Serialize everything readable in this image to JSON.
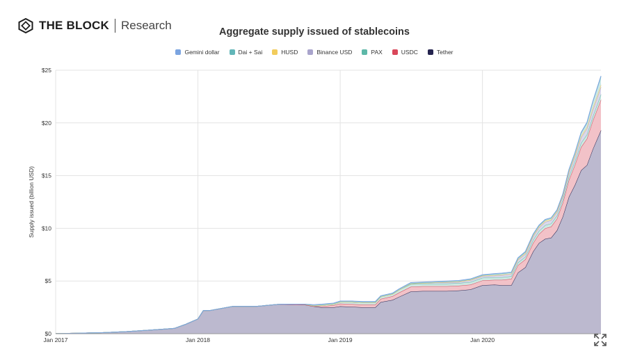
{
  "brand": {
    "name": "THE BLOCK",
    "sub": "Research"
  },
  "chart_data": {
    "type": "area",
    "stacked": true,
    "title": "Aggregate supply issued of stablecoins",
    "ylabel": "Supply issued (billion USD)",
    "xlabel": "",
    "ylim": [
      0,
      25
    ],
    "xlim": [
      "2017-01-01",
      "2020-10-31"
    ],
    "y_ticks": [
      0,
      5,
      10,
      15,
      20,
      25
    ],
    "y_tick_labels": [
      "$0",
      "$5",
      "$10",
      "$15",
      "$20",
      "$25"
    ],
    "x_ticks": [
      "2017-01-01",
      "2018-01-01",
      "2019-01-01",
      "2020-01-01"
    ],
    "x_tick_labels": [
      "Jan 2017",
      "Jan 2018",
      "Jan 2019",
      "Jan 2020"
    ],
    "grid": true,
    "legend_position": "top-center",
    "x": [
      "2017-01-01",
      "2017-03-01",
      "2017-05-01",
      "2017-07-01",
      "2017-09-01",
      "2017-11-01",
      "2017-12-01",
      "2018-01-01",
      "2018-01-15",
      "2018-02-01",
      "2018-04-01",
      "2018-06-01",
      "2018-08-01",
      "2018-10-01",
      "2018-10-25",
      "2018-11-15",
      "2018-12-15",
      "2019-01-01",
      "2019-02-01",
      "2019-03-01",
      "2019-04-01",
      "2019-04-15",
      "2019-05-15",
      "2019-06-01",
      "2019-07-01",
      "2019-08-01",
      "2019-09-01",
      "2019-10-01",
      "2019-11-01",
      "2019-12-01",
      "2020-01-01",
      "2020-02-01",
      "2020-02-20",
      "2020-03-15",
      "2020-04-01",
      "2020-04-20",
      "2020-05-10",
      "2020-05-25",
      "2020-06-10",
      "2020-06-25",
      "2020-07-10",
      "2020-07-25",
      "2020-08-10",
      "2020-08-25",
      "2020-09-10",
      "2020-09-25",
      "2020-10-10",
      "2020-10-31"
    ],
    "series": [
      {
        "name": "Tether",
        "color": "#25244f",
        "fill": "#bcb9cf",
        "values": [
          0.01,
          0.05,
          0.1,
          0.2,
          0.35,
          0.5,
          0.9,
          1.4,
          2.2,
          2.2,
          2.6,
          2.6,
          2.8,
          2.75,
          2.6,
          2.5,
          2.5,
          2.6,
          2.55,
          2.5,
          2.5,
          3.0,
          3.2,
          3.5,
          4.0,
          4.05,
          4.05,
          4.05,
          4.1,
          4.2,
          4.6,
          4.65,
          4.6,
          4.6,
          5.8,
          6.3,
          7.8,
          8.6,
          9.0,
          9.1,
          9.8,
          11.1,
          13.0,
          14.1,
          15.5,
          16.0,
          17.5,
          19.3
        ]
      },
      {
        "name": "USDC",
        "color": "#d9475a",
        "fill": "#f2c2c8",
        "values": [
          0,
          0,
          0,
          0,
          0,
          0,
          0,
          0,
          0,
          0,
          0,
          0,
          0,
          0,
          0,
          0.1,
          0.2,
          0.25,
          0.25,
          0.25,
          0.25,
          0.3,
          0.35,
          0.4,
          0.45,
          0.45,
          0.45,
          0.45,
          0.45,
          0.45,
          0.45,
          0.45,
          0.5,
          0.6,
          0.7,
          0.75,
          0.8,
          0.85,
          1.0,
          1.05,
          1.1,
          1.3,
          1.6,
          1.9,
          2.2,
          2.5,
          2.7,
          2.9
        ]
      },
      {
        "name": "PAX",
        "color": "#5db8a8",
        "fill": "#cde8e2",
        "values": [
          0,
          0,
          0,
          0,
          0,
          0,
          0,
          0,
          0,
          0,
          0,
          0,
          0,
          0.05,
          0.05,
          0.1,
          0.1,
          0.15,
          0.2,
          0.2,
          0.2,
          0.2,
          0.2,
          0.25,
          0.25,
          0.25,
          0.25,
          0.25,
          0.25,
          0.25,
          0.25,
          0.25,
          0.25,
          0.25,
          0.25,
          0.25,
          0.3,
          0.3,
          0.3,
          0.3,
          0.3,
          0.3,
          0.35,
          0.35,
          0.4,
          0.4,
          0.4,
          0.5
        ]
      },
      {
        "name": "Binance USD",
        "color": "#a9a4cc",
        "fill": "#dcd9ec",
        "values": [
          0,
          0,
          0,
          0,
          0,
          0,
          0,
          0,
          0,
          0,
          0,
          0,
          0,
          0,
          0,
          0,
          0,
          0,
          0,
          0,
          0,
          0,
          0,
          0,
          0.05,
          0.05,
          0.1,
          0.1,
          0.1,
          0.15,
          0.15,
          0.15,
          0.2,
          0.2,
          0.25,
          0.25,
          0.3,
          0.3,
          0.3,
          0.3,
          0.3,
          0.3,
          0.35,
          0.4,
          0.5,
          0.55,
          0.6,
          0.7
        ]
      },
      {
        "name": "HUSD",
        "color": "#f2cc5c",
        "fill": "#f7ecc4",
        "values": [
          0,
          0,
          0,
          0,
          0,
          0,
          0,
          0,
          0,
          0,
          0,
          0,
          0,
          0,
          0,
          0,
          0,
          0,
          0,
          0,
          0,
          0,
          0,
          0,
          0,
          0,
          0,
          0.05,
          0.05,
          0.05,
          0.05,
          0.05,
          0.05,
          0.05,
          0.05,
          0.1,
          0.1,
          0.1,
          0.1,
          0.1,
          0.1,
          0.1,
          0.1,
          0.15,
          0.15,
          0.15,
          0.2,
          0.2
        ]
      },
      {
        "name": "Dai + Sai",
        "color": "#62b6b8",
        "fill": "#cbe7e8",
        "values": [
          0,
          0,
          0,
          0,
          0,
          0,
          0,
          0,
          0,
          0,
          0,
          0,
          0,
          0,
          0.05,
          0.05,
          0.05,
          0.05,
          0.05,
          0.05,
          0.05,
          0.05,
          0.05,
          0.05,
          0.05,
          0.05,
          0.05,
          0.05,
          0.05,
          0.05,
          0.05,
          0.1,
          0.1,
          0.1,
          0.1,
          0.1,
          0.1,
          0.1,
          0.1,
          0.1,
          0.1,
          0.1,
          0.15,
          0.2,
          0.3,
          0.4,
          0.6,
          0.8
        ]
      },
      {
        "name": "Gemini dollar",
        "color": "#7ba4e0",
        "fill": "#d2e0f5",
        "values": [
          0,
          0,
          0,
          0,
          0,
          0,
          0,
          0,
          0,
          0,
          0,
          0,
          0,
          0,
          0.05,
          0.05,
          0.05,
          0.05,
          0.05,
          0.05,
          0.05,
          0.05,
          0.05,
          0.05,
          0.05,
          0.05,
          0.05,
          0.05,
          0.05,
          0.05,
          0.05,
          0.05,
          0.05,
          0.05,
          0.05,
          0.05,
          0.05,
          0.05,
          0.05,
          0.05,
          0.05,
          0.05,
          0.05,
          0.05,
          0.05,
          0.05,
          0.05,
          0.05
        ]
      }
    ],
    "legend_order": [
      "Gemini dollar",
      "Dai + Sai",
      "HUSD",
      "Binance USD",
      "PAX",
      "USDC",
      "Tether"
    ]
  }
}
